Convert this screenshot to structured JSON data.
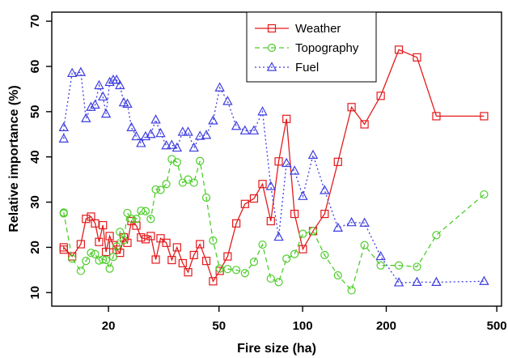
{
  "chart_data": {
    "type": "line",
    "xlabel": "Fire size (ha)",
    "ylabel": "Relative importance (%)",
    "x_scale": "log",
    "xlim": [
      12.5,
      520
    ],
    "ylim": [
      7,
      72
    ],
    "x_ticks": [
      20,
      50,
      100,
      200,
      500
    ],
    "x_tick_labels": [
      "20",
      "50",
      "100",
      "200",
      "500"
    ],
    "y_ticks": [
      10,
      20,
      30,
      40,
      50,
      60,
      70
    ],
    "y_tick_labels": [
      "10",
      "20",
      "30",
      "40",
      "50",
      "60",
      "70"
    ],
    "grid": false,
    "legend_position": "top-center",
    "series": [
      {
        "name": "Weather",
        "color": "#e41a1c",
        "line_style": "solid",
        "marker": "square",
        "x": [
          13.8,
          13.8,
          14.8,
          15.9,
          16.6,
          17.3,
          17.9,
          18.5,
          19.1,
          19.6,
          20.2,
          20.8,
          21.4,
          22.0,
          22.7,
          23.4,
          24.2,
          25.2,
          26.2,
          27.2,
          28.4,
          29.6,
          30.8,
          32.3,
          33.8,
          35.3,
          37.0,
          38.7,
          40.6,
          42.7,
          45.0,
          47.6,
          50.3,
          53.7,
          57.7,
          62.0,
          66.8,
          71.7,
          76.8,
          82.0,
          87.5,
          93.5,
          100.2,
          109.0,
          120.0,
          134.0,
          150.0,
          167.0,
          191.0,
          222.0,
          258.0,
          303.0,
          450.0
        ],
        "y": [
          19.5,
          20.0,
          18.0,
          20.7,
          26.3,
          26.8,
          25.3,
          21.2,
          24.9,
          19.0,
          22.5,
          20.5,
          19.5,
          18.8,
          22.2,
          21.0,
          25.8,
          24.8,
          22.2,
          21.8,
          22.5,
          17.3,
          22.0,
          21.0,
          17.2,
          20.0,
          16.5,
          14.5,
          18.3,
          20.7,
          17.0,
          12.5,
          14.8,
          18.0,
          25.3,
          29.6,
          30.8,
          34.0,
          25.8,
          39.0,
          48.4,
          27.4,
          19.6,
          23.6,
          27.4,
          38.9,
          51.0,
          47.2,
          53.5,
          63.7,
          62.0,
          49.0,
          49.0
        ]
      },
      {
        "name": "Topography",
        "color": "#4dcd2a",
        "line_style": "dashed",
        "marker": "circle",
        "x": [
          13.8,
          13.8,
          14.8,
          15.9,
          16.6,
          17.3,
          17.9,
          18.5,
          19.1,
          19.6,
          20.2,
          20.8,
          21.4,
          22.0,
          22.7,
          23.4,
          24.2,
          25.2,
          26.2,
          27.2,
          28.4,
          29.6,
          30.8,
          32.3,
          33.8,
          35.3,
          37.0,
          38.7,
          40.6,
          42.7,
          45.0,
          47.6,
          50.3,
          53.7,
          57.7,
          62.0,
          66.8,
          71.7,
          76.8,
          82.0,
          87.5,
          93.5,
          100.2,
          109.0,
          120.0,
          134.0,
          150.0,
          167.0,
          191.0,
          222.0,
          258.0,
          303.0,
          450.0
        ],
        "y": [
          27.5,
          27.7,
          17.5,
          14.8,
          17.0,
          18.8,
          18.5,
          17.1,
          17.3,
          17.2,
          15.3,
          17.9,
          20.2,
          23.4,
          21.6,
          27.6,
          26.3,
          26.3,
          28.1,
          28.0,
          26.3,
          32.8,
          32.7,
          34.0,
          39.5,
          38.8,
          34.3,
          35.0,
          34.3,
          39.1,
          31.0,
          21.5,
          15.3,
          15.2,
          15.0,
          14.3,
          16.8,
          20.6,
          13.1,
          12.3,
          17.5,
          18.5,
          23.0,
          23.6,
          18.3,
          13.8,
          10.5,
          20.5,
          16.0,
          16.0,
          15.7,
          22.7,
          31.7
        ]
      },
      {
        "name": "Fuel",
        "color": "#3d3de0",
        "line_style": "dotted",
        "marker": "triangle",
        "x": [
          13.8,
          13.8,
          14.8,
          15.9,
          16.6,
          17.3,
          17.9,
          18.5,
          19.1,
          19.6,
          20.2,
          20.8,
          21.4,
          22.0,
          22.7,
          23.4,
          24.2,
          25.2,
          26.2,
          27.2,
          28.4,
          29.6,
          30.8,
          32.3,
          33.8,
          35.3,
          37.0,
          38.7,
          40.6,
          42.7,
          45.0,
          47.6,
          50.3,
          53.7,
          57.7,
          62.0,
          66.8,
          71.7,
          76.8,
          82.0,
          87.5,
          93.5,
          100.2,
          109.0,
          120.0,
          134.0,
          150.0,
          167.0,
          191.0,
          222.0,
          258.0,
          303.0,
          450.0
        ],
        "y": [
          44.0,
          46.5,
          58.5,
          58.7,
          48.5,
          51.0,
          51.5,
          55.8,
          53.3,
          49.5,
          56.5,
          57.0,
          57.0,
          55.8,
          52.0,
          51.7,
          46.5,
          44.5,
          43.0,
          44.5,
          45.0,
          48.2,
          45.2,
          42.5,
          42.6,
          42.0,
          45.5,
          45.5,
          42.0,
          44.6,
          44.8,
          48.0,
          55.3,
          52.3,
          46.8,
          45.8,
          45.8,
          50.0,
          33.5,
          22.3,
          38.6,
          36.9,
          31.3,
          40.4,
          32.6,
          24.3,
          25.5,
          25.4,
          18.0,
          12.2,
          12.3,
          12.3,
          12.5
        ]
      }
    ]
  }
}
